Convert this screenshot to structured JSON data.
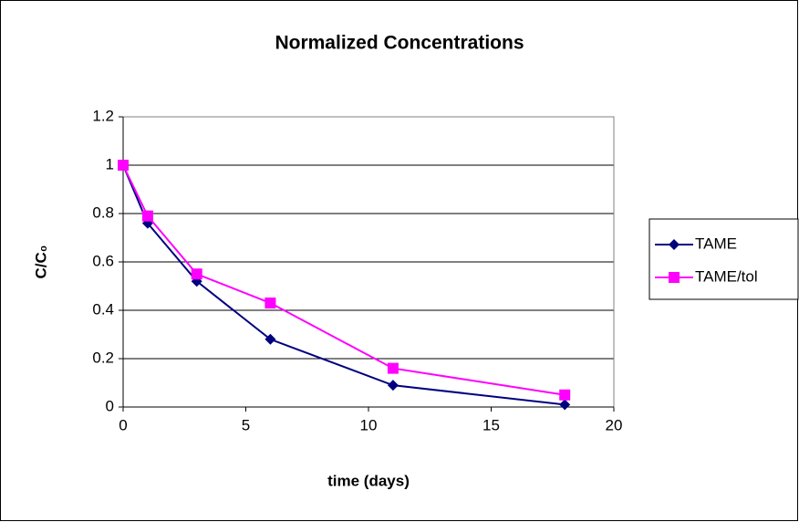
{
  "chart_data": {
    "type": "line",
    "title": "Normalized Concentrations",
    "xlabel": "time (days)",
    "ylabel": "C/C₀",
    "x": [
      0,
      1,
      3,
      6,
      11,
      18
    ],
    "series": [
      {
        "name": "TAME",
        "color": "#000080",
        "marker": "diamond",
        "values": [
          1,
          0.76,
          0.52,
          0.28,
          0.09,
          0.01
        ]
      },
      {
        "name": "TAME/tol",
        "color": "#ff00ff",
        "marker": "square",
        "values": [
          1,
          0.79,
          0.55,
          0.43,
          0.16,
          0.05
        ]
      }
    ],
    "xlim": [
      0,
      20
    ],
    "xticks": [
      0,
      5,
      10,
      15,
      20
    ],
    "ylim": [
      0,
      1.2
    ],
    "yticks": [
      0,
      0.2,
      0.4,
      0.6,
      0.8,
      1,
      1.2
    ],
    "grid": true,
    "legend": "right"
  }
}
